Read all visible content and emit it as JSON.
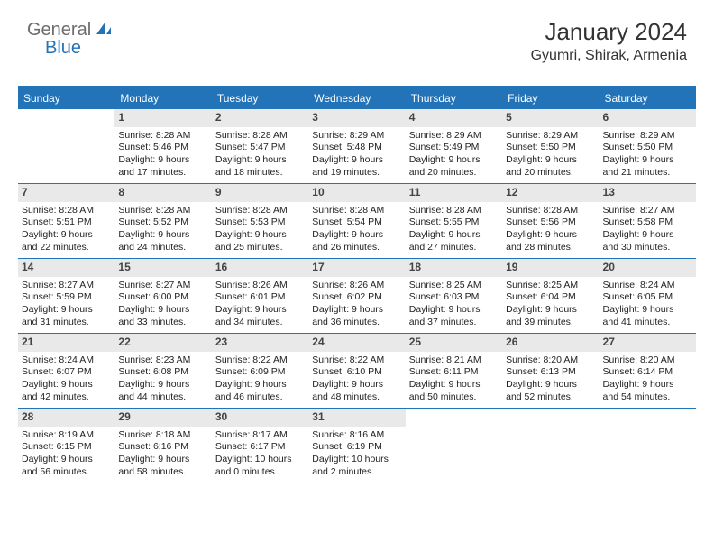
{
  "logo": {
    "gray": "General",
    "blue": "Blue"
  },
  "title": "January 2024",
  "location": "Gyumri, Shirak, Armenia",
  "accent_color": "#2373b8",
  "daynum_bg": "#e9e9e9",
  "dayNames": [
    "Sunday",
    "Monday",
    "Tuesday",
    "Wednesday",
    "Thursday",
    "Friday",
    "Saturday"
  ],
  "cellFields": [
    "sunrise",
    "sunset",
    "daylight1",
    "daylight2"
  ],
  "weeks": [
    [
      null,
      {
        "n": "1",
        "sunrise": "Sunrise: 8:28 AM",
        "sunset": "Sunset: 5:46 PM",
        "daylight1": "Daylight: 9 hours",
        "daylight2": "and 17 minutes."
      },
      {
        "n": "2",
        "sunrise": "Sunrise: 8:28 AM",
        "sunset": "Sunset: 5:47 PM",
        "daylight1": "Daylight: 9 hours",
        "daylight2": "and 18 minutes."
      },
      {
        "n": "3",
        "sunrise": "Sunrise: 8:29 AM",
        "sunset": "Sunset: 5:48 PM",
        "daylight1": "Daylight: 9 hours",
        "daylight2": "and 19 minutes."
      },
      {
        "n": "4",
        "sunrise": "Sunrise: 8:29 AM",
        "sunset": "Sunset: 5:49 PM",
        "daylight1": "Daylight: 9 hours",
        "daylight2": "and 20 minutes."
      },
      {
        "n": "5",
        "sunrise": "Sunrise: 8:29 AM",
        "sunset": "Sunset: 5:50 PM",
        "daylight1": "Daylight: 9 hours",
        "daylight2": "and 20 minutes."
      },
      {
        "n": "6",
        "sunrise": "Sunrise: 8:29 AM",
        "sunset": "Sunset: 5:50 PM",
        "daylight1": "Daylight: 9 hours",
        "daylight2": "and 21 minutes."
      }
    ],
    [
      {
        "n": "7",
        "sunrise": "Sunrise: 8:28 AM",
        "sunset": "Sunset: 5:51 PM",
        "daylight1": "Daylight: 9 hours",
        "daylight2": "and 22 minutes."
      },
      {
        "n": "8",
        "sunrise": "Sunrise: 8:28 AM",
        "sunset": "Sunset: 5:52 PM",
        "daylight1": "Daylight: 9 hours",
        "daylight2": "and 24 minutes."
      },
      {
        "n": "9",
        "sunrise": "Sunrise: 8:28 AM",
        "sunset": "Sunset: 5:53 PM",
        "daylight1": "Daylight: 9 hours",
        "daylight2": "and 25 minutes."
      },
      {
        "n": "10",
        "sunrise": "Sunrise: 8:28 AM",
        "sunset": "Sunset: 5:54 PM",
        "daylight1": "Daylight: 9 hours",
        "daylight2": "and 26 minutes."
      },
      {
        "n": "11",
        "sunrise": "Sunrise: 8:28 AM",
        "sunset": "Sunset: 5:55 PM",
        "daylight1": "Daylight: 9 hours",
        "daylight2": "and 27 minutes."
      },
      {
        "n": "12",
        "sunrise": "Sunrise: 8:28 AM",
        "sunset": "Sunset: 5:56 PM",
        "daylight1": "Daylight: 9 hours",
        "daylight2": "and 28 minutes."
      },
      {
        "n": "13",
        "sunrise": "Sunrise: 8:27 AM",
        "sunset": "Sunset: 5:58 PM",
        "daylight1": "Daylight: 9 hours",
        "daylight2": "and 30 minutes."
      }
    ],
    [
      {
        "n": "14",
        "sunrise": "Sunrise: 8:27 AM",
        "sunset": "Sunset: 5:59 PM",
        "daylight1": "Daylight: 9 hours",
        "daylight2": "and 31 minutes."
      },
      {
        "n": "15",
        "sunrise": "Sunrise: 8:27 AM",
        "sunset": "Sunset: 6:00 PM",
        "daylight1": "Daylight: 9 hours",
        "daylight2": "and 33 minutes."
      },
      {
        "n": "16",
        "sunrise": "Sunrise: 8:26 AM",
        "sunset": "Sunset: 6:01 PM",
        "daylight1": "Daylight: 9 hours",
        "daylight2": "and 34 minutes."
      },
      {
        "n": "17",
        "sunrise": "Sunrise: 8:26 AM",
        "sunset": "Sunset: 6:02 PM",
        "daylight1": "Daylight: 9 hours",
        "daylight2": "and 36 minutes."
      },
      {
        "n": "18",
        "sunrise": "Sunrise: 8:25 AM",
        "sunset": "Sunset: 6:03 PM",
        "daylight1": "Daylight: 9 hours",
        "daylight2": "and 37 minutes."
      },
      {
        "n": "19",
        "sunrise": "Sunrise: 8:25 AM",
        "sunset": "Sunset: 6:04 PM",
        "daylight1": "Daylight: 9 hours",
        "daylight2": "and 39 minutes."
      },
      {
        "n": "20",
        "sunrise": "Sunrise: 8:24 AM",
        "sunset": "Sunset: 6:05 PM",
        "daylight1": "Daylight: 9 hours",
        "daylight2": "and 41 minutes."
      }
    ],
    [
      {
        "n": "21",
        "sunrise": "Sunrise: 8:24 AM",
        "sunset": "Sunset: 6:07 PM",
        "daylight1": "Daylight: 9 hours",
        "daylight2": "and 42 minutes."
      },
      {
        "n": "22",
        "sunrise": "Sunrise: 8:23 AM",
        "sunset": "Sunset: 6:08 PM",
        "daylight1": "Daylight: 9 hours",
        "daylight2": "and 44 minutes."
      },
      {
        "n": "23",
        "sunrise": "Sunrise: 8:22 AM",
        "sunset": "Sunset: 6:09 PM",
        "daylight1": "Daylight: 9 hours",
        "daylight2": "and 46 minutes."
      },
      {
        "n": "24",
        "sunrise": "Sunrise: 8:22 AM",
        "sunset": "Sunset: 6:10 PM",
        "daylight1": "Daylight: 9 hours",
        "daylight2": "and 48 minutes."
      },
      {
        "n": "25",
        "sunrise": "Sunrise: 8:21 AM",
        "sunset": "Sunset: 6:11 PM",
        "daylight1": "Daylight: 9 hours",
        "daylight2": "and 50 minutes."
      },
      {
        "n": "26",
        "sunrise": "Sunrise: 8:20 AM",
        "sunset": "Sunset: 6:13 PM",
        "daylight1": "Daylight: 9 hours",
        "daylight2": "and 52 minutes."
      },
      {
        "n": "27",
        "sunrise": "Sunrise: 8:20 AM",
        "sunset": "Sunset: 6:14 PM",
        "daylight1": "Daylight: 9 hours",
        "daylight2": "and 54 minutes."
      }
    ],
    [
      {
        "n": "28",
        "sunrise": "Sunrise: 8:19 AM",
        "sunset": "Sunset: 6:15 PM",
        "daylight1": "Daylight: 9 hours",
        "daylight2": "and 56 minutes."
      },
      {
        "n": "29",
        "sunrise": "Sunrise: 8:18 AM",
        "sunset": "Sunset: 6:16 PM",
        "daylight1": "Daylight: 9 hours",
        "daylight2": "and 58 minutes."
      },
      {
        "n": "30",
        "sunrise": "Sunrise: 8:17 AM",
        "sunset": "Sunset: 6:17 PM",
        "daylight1": "Daylight: 10 hours",
        "daylight2": "and 0 minutes."
      },
      {
        "n": "31",
        "sunrise": "Sunrise: 8:16 AM",
        "sunset": "Sunset: 6:19 PM",
        "daylight1": "Daylight: 10 hours",
        "daylight2": "and 2 minutes."
      },
      null,
      null,
      null
    ]
  ]
}
